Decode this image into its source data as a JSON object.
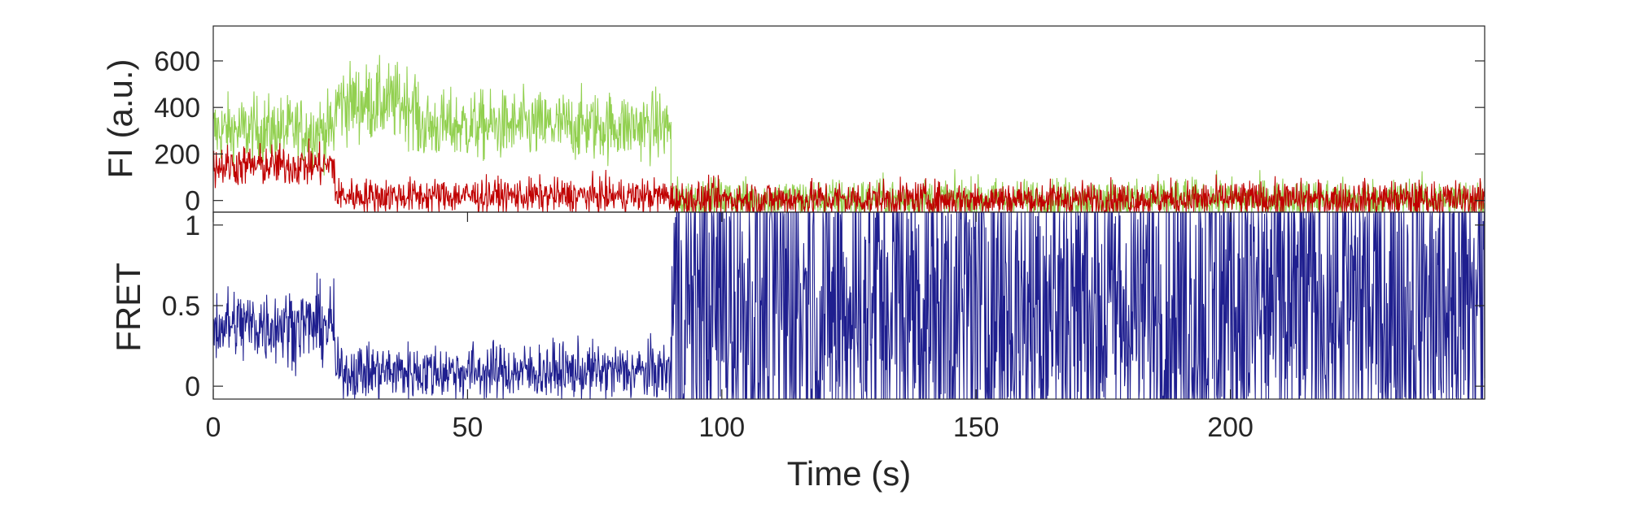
{
  "chart_data": [
    {
      "type": "line",
      "ylabel": "FI (a.u.)",
      "xlim": [
        0,
        250
      ],
      "ylim": [
        -50,
        750
      ],
      "yticks": [
        0,
        200,
        400,
        600
      ],
      "ytick_labels": [
        "0",
        "200",
        "400",
        "600"
      ],
      "grid": false,
      "series": [
        {
          "color": "#92d050",
          "segments": [
            {
              "x": [
                0,
                24
              ],
              "mean": 300,
              "noise": 75
            },
            {
              "x": [
                24,
                40
              ],
              "mean": 420,
              "noise": 85
            },
            {
              "x": [
                40,
                90
              ],
              "mean": 320,
              "noise": 75
            },
            {
              "x": [
                90,
                250
              ],
              "mean": 5,
              "noise": 45
            }
          ]
        },
        {
          "color": "#c00000",
          "segments": [
            {
              "x": [
                0,
                24
              ],
              "mean": 150,
              "noise": 45
            },
            {
              "x": [
                24,
                90
              ],
              "mean": 20,
              "noise": 38
            },
            {
              "x": [
                90,
                250
              ],
              "mean": 5,
              "noise": 40
            }
          ]
        }
      ]
    },
    {
      "type": "line",
      "xlabel": "Time (s)",
      "ylabel": "FRET",
      "xlim": [
        0,
        250
      ],
      "ylim": [
        -0.08,
        1.08
      ],
      "xticks": [
        0,
        50,
        100,
        150,
        200
      ],
      "xtick_labels": [
        "0",
        "50",
        "100",
        "150",
        "200"
      ],
      "yticks": [
        0,
        0.5,
        1
      ],
      "ytick_labels": [
        "0",
        "0.5",
        "1"
      ],
      "grid": false,
      "series": [
        {
          "color": "#1f1f8f",
          "segments": [
            {
              "x": [
                0,
                24
              ],
              "mean": 0.38,
              "noise": 0.12
            },
            {
              "x": [
                24,
                90
              ],
              "mean": 0.09,
              "noise": 0.09
            },
            {
              "x": [
                90,
                250
              ],
              "mean": 0.5,
              "noise": 0.7
            }
          ]
        }
      ]
    }
  ]
}
